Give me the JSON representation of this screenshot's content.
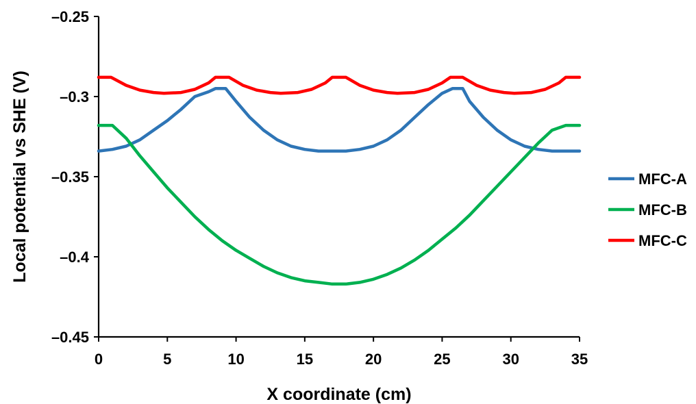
{
  "chart_data": {
    "type": "line",
    "xlabel": "X coordinate (cm)",
    "ylabel": "Local potential vs SHE (V)",
    "xlim": [
      0,
      35
    ],
    "ylim": [
      -0.45,
      -0.25
    ],
    "xticks": [
      0,
      5,
      10,
      15,
      20,
      25,
      30,
      35
    ],
    "xtick_labels": [
      "0",
      "5",
      "10",
      "15",
      "20",
      "25",
      "30",
      "35"
    ],
    "yticks": [
      -0.25,
      -0.3,
      -0.35,
      -0.4,
      -0.45
    ],
    "ytick_labels": [
      "–0.25",
      "–0.3",
      "–0.35",
      "–0.4",
      "–0.45"
    ],
    "grid": false,
    "legend_position": "right",
    "series": [
      {
        "name": "MFC-A",
        "color": "#2e75b6",
        "x": [
          0,
          1,
          2,
          3,
          4,
          5,
          6,
          7,
          8,
          8.5,
          9.25,
          10,
          11,
          12,
          13,
          14,
          15,
          16,
          17,
          17.5,
          18,
          19,
          20,
          21,
          22,
          23,
          24,
          25,
          25.75,
          26.5,
          27,
          28,
          29,
          30,
          31,
          32,
          33,
          34,
          35
        ],
        "y": [
          -0.334,
          -0.333,
          -0.331,
          -0.327,
          -0.321,
          -0.315,
          -0.308,
          -0.3,
          -0.297,
          -0.295,
          -0.295,
          -0.303,
          -0.313,
          -0.321,
          -0.327,
          -0.331,
          -0.333,
          -0.334,
          -0.334,
          -0.334,
          -0.334,
          -0.333,
          -0.331,
          -0.327,
          -0.321,
          -0.313,
          -0.305,
          -0.298,
          -0.295,
          -0.295,
          -0.303,
          -0.313,
          -0.321,
          -0.327,
          -0.331,
          -0.333,
          -0.334,
          -0.334,
          -0.334
        ]
      },
      {
        "name": "MFC-B",
        "color": "#00b050",
        "x": [
          0,
          1,
          2,
          3,
          4,
          5,
          6,
          7,
          8,
          9,
          10,
          11,
          12,
          13,
          14,
          15,
          16,
          17,
          17.5,
          18,
          19,
          20,
          21,
          22,
          23,
          24,
          25,
          26,
          27,
          28,
          29,
          30,
          31,
          32,
          33,
          34,
          35
        ],
        "y": [
          -0.318,
          -0.318,
          -0.326,
          -0.337,
          -0.347,
          -0.357,
          -0.366,
          -0.375,
          -0.383,
          -0.39,
          -0.396,
          -0.401,
          -0.406,
          -0.41,
          -0.413,
          -0.415,
          -0.416,
          -0.417,
          -0.417,
          -0.417,
          -0.416,
          -0.414,
          -0.411,
          -0.407,
          -0.402,
          -0.396,
          -0.389,
          -0.382,
          -0.374,
          -0.365,
          -0.356,
          -0.347,
          -0.338,
          -0.329,
          -0.321,
          -0.318,
          -0.318
        ]
      },
      {
        "name": "MFC-C",
        "color": "#ff0000",
        "x": [
          0,
          0.9,
          2,
          3,
          4,
          4.75,
          6,
          7,
          8,
          8.5,
          9.5,
          10.5,
          11.5,
          12.5,
          13.25,
          14.5,
          15.5,
          16.5,
          17,
          18,
          19,
          20,
          21,
          21.75,
          23,
          24,
          25,
          25.6,
          26.5,
          27.5,
          28.5,
          29.5,
          30.25,
          31.5,
          32.5,
          33.5,
          34,
          35
        ],
        "y": [
          -0.288,
          -0.288,
          -0.293,
          -0.296,
          -0.2975,
          -0.298,
          -0.2975,
          -0.2955,
          -0.2915,
          -0.288,
          -0.288,
          -0.293,
          -0.296,
          -0.2975,
          -0.298,
          -0.2975,
          -0.2955,
          -0.2915,
          -0.288,
          -0.288,
          -0.293,
          -0.296,
          -0.2975,
          -0.298,
          -0.2975,
          -0.2955,
          -0.2915,
          -0.288,
          -0.288,
          -0.293,
          -0.296,
          -0.2975,
          -0.298,
          -0.2975,
          -0.2955,
          -0.2915,
          -0.288,
          -0.288
        ]
      }
    ]
  }
}
